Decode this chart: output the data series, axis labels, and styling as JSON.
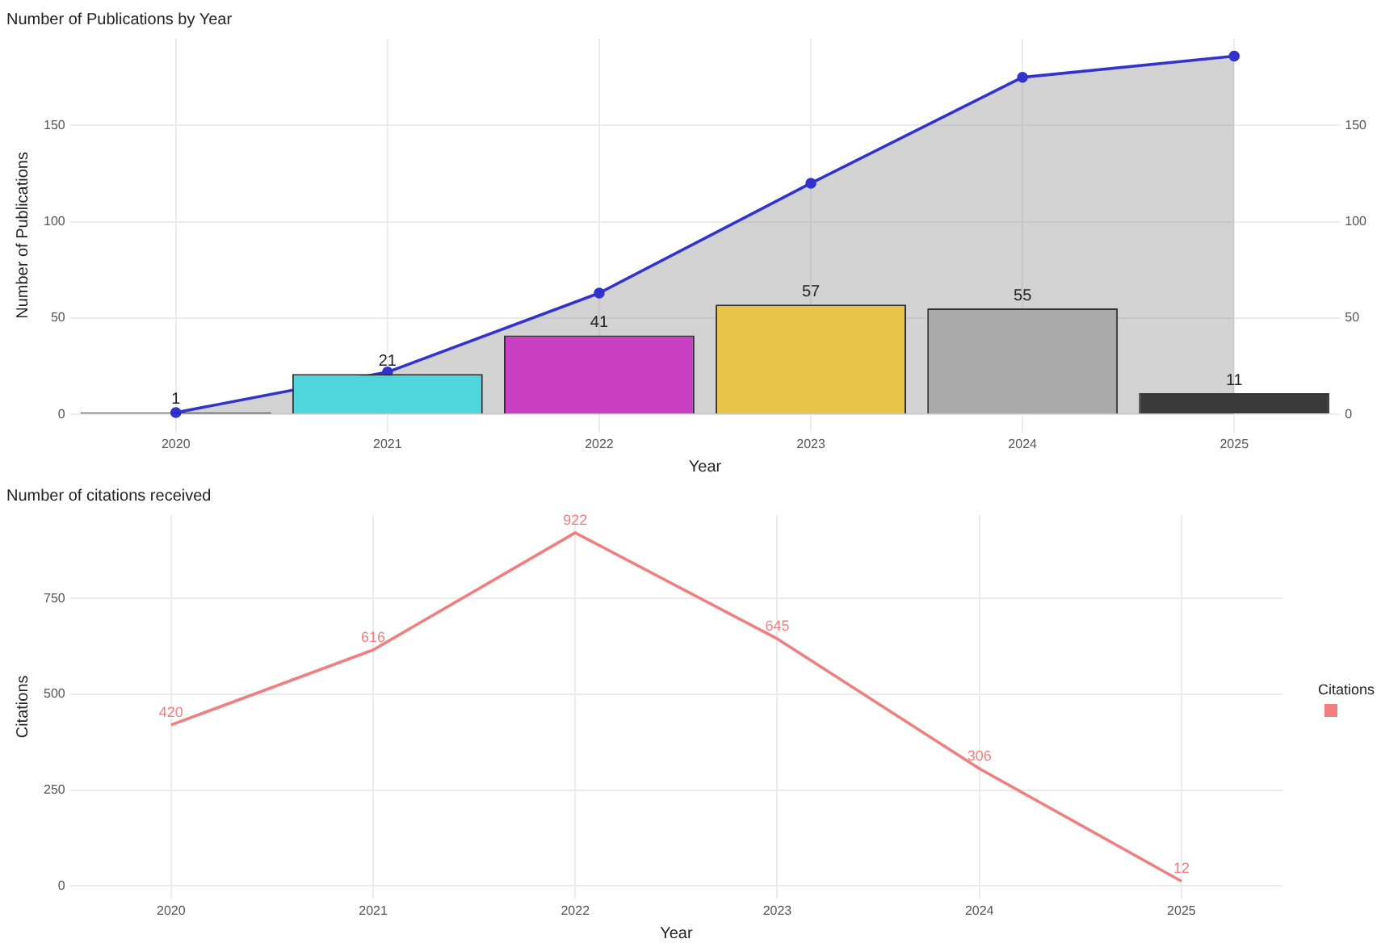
{
  "chart_data": [
    {
      "type": "bar",
      "title": "Number of Publications by Year",
      "xlabel": "Year",
      "ylabel": "Number of Publications",
      "categories": [
        "2020",
        "2021",
        "2022",
        "2023",
        "2024",
        "2025"
      ],
      "series": [
        {
          "colors": [
            "#1a1a1a",
            "#4fd6dc",
            "#c93fc4",
            "#e8c547",
            "#aaaaaa",
            "#3a3a3a"
          ],
          "values": [
            1,
            21,
            41,
            57,
            55,
            11
          ],
          "value_labels": [
            "1",
            "21",
            "41",
            "57",
            "55",
            "11"
          ]
        },
        {
          "type": "area",
          "color": "#3333cc",
          "values": [
            1,
            22,
            63,
            120,
            175,
            186
          ]
        }
      ],
      "ylim": [
        -9,
        195
      ],
      "yticks": [
        0,
        50,
        100,
        150
      ],
      "y2lim": [
        -9,
        195
      ],
      "y2ticks": [
        0,
        50,
        100,
        150
      ],
      "grid": true,
      "marker": "circle",
      "legend": false
    },
    {
      "type": "line",
      "title": "Number of citations received",
      "xlabel": "Year",
      "ylabel": "Citations",
      "legend_title": "Citations",
      "categories": [
        "2020",
        "2021",
        "2022",
        "2023",
        "2024",
        "2025"
      ],
      "series": [
        {
          "color": "#f08080",
          "values": [
            420,
            616,
            922,
            645,
            306,
            12
          ]
        }
      ],
      "ylim": [
        -33,
        968
      ],
      "yticks": [
        0,
        250,
        500,
        750
      ],
      "grid": true,
      "data_labels": true,
      "marker": "none"
    }
  ]
}
